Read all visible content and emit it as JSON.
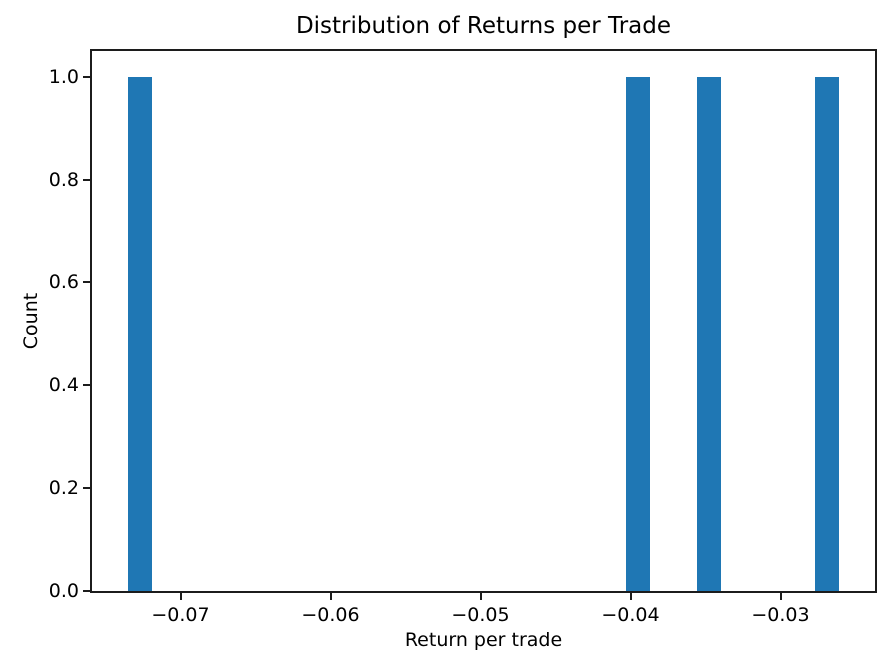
{
  "chart_data": {
    "type": "bar",
    "subtype": "histogram",
    "title": "Distribution of Returns per Trade",
    "xlabel": "Return per trade",
    "ylabel": "Count",
    "xlim": [
      -0.0759,
      -0.0237
    ],
    "ylim": [
      0,
      1.05
    ],
    "grid": false,
    "legend": false,
    "bar_color": "#1f77b4",
    "axis_color": "#1c1c1c",
    "text_color": "#000000",
    "background_color": "#ffffff",
    "xticks": [
      {
        "value": -0.07,
        "label": "−0.07"
      },
      {
        "value": -0.06,
        "label": "−0.06"
      },
      {
        "value": -0.05,
        "label": "−0.05"
      },
      {
        "value": -0.04,
        "label": "−0.04"
      },
      {
        "value": -0.03,
        "label": "−0.03"
      }
    ],
    "yticks": [
      {
        "value": 0.0,
        "label": "0.0"
      },
      {
        "value": 0.2,
        "label": "0.2"
      },
      {
        "value": 0.4,
        "label": "0.4"
      },
      {
        "value": 0.6,
        "label": "0.6"
      },
      {
        "value": 0.8,
        "label": "0.8"
      },
      {
        "value": 1.0,
        "label": "1.0"
      }
    ],
    "bars": [
      {
        "x0": -0.0735,
        "x1": -0.0719,
        "count": 1
      },
      {
        "x0": -0.0403,
        "x1": -0.0387,
        "count": 1
      },
      {
        "x0": -0.0356,
        "x1": -0.034,
        "count": 1
      },
      {
        "x0": -0.0277,
        "x1": -0.0261,
        "count": 1
      }
    ],
    "underlying_values_approx": [
      -0.0727,
      -0.0395,
      -0.0348,
      -0.0269
    ]
  }
}
